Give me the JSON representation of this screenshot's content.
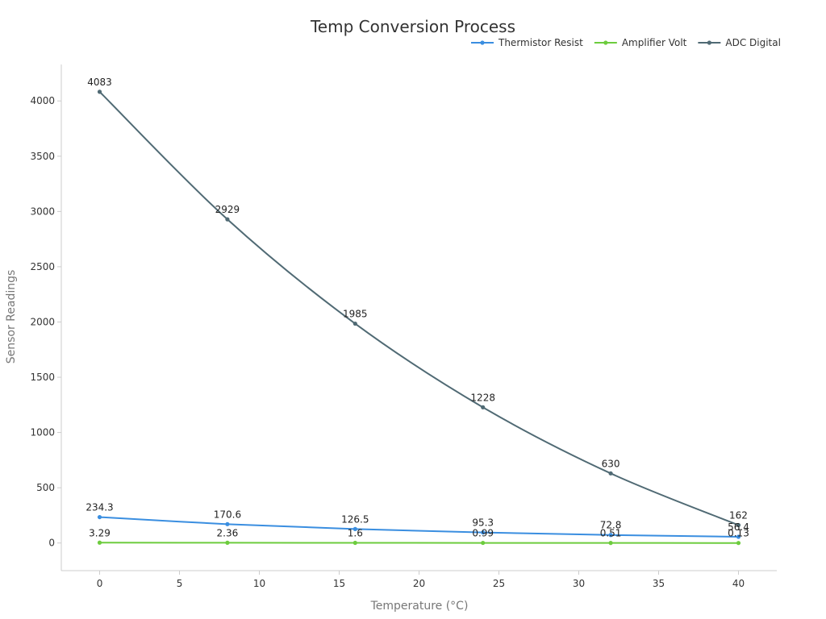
{
  "chart_data": {
    "type": "line",
    "title": "Temp Conversion Process",
    "xlabel": "Temperature (°C)",
    "ylabel": "Sensor Readings",
    "x": [
      0,
      8,
      16,
      24,
      32,
      40
    ],
    "xlim": [
      -2.4,
      42.4
    ],
    "ylim": [
      -250,
      4330
    ],
    "xticks": [
      0,
      5,
      10,
      15,
      20,
      25,
      30,
      35,
      40
    ],
    "yticks": [
      0,
      500,
      1000,
      1500,
      2000,
      2500,
      3000,
      3500,
      4000
    ],
    "grid": false,
    "legend_position": "top-right",
    "series": [
      {
        "name": "Thermistor Resist",
        "color": "#3a8ee0",
        "values": [
          234.3,
          170.6,
          126.5,
          95.3,
          72.8,
          56.4
        ],
        "labels": [
          "234.3",
          "170.6",
          "126.5",
          "95.3",
          "72.8",
          "56.4"
        ]
      },
      {
        "name": "Amplifier Volt",
        "color": "#6dcc3e",
        "values": [
          3.29,
          2.36,
          1.6,
          0.99,
          0.51,
          0.13
        ],
        "labels": [
          "3.29",
          "2.36",
          "1.6",
          "0.99",
          "0.51",
          "0.13"
        ]
      },
      {
        "name": "ADC Digital",
        "color": "#506a74",
        "values": [
          4083,
          2929,
          1985,
          1228,
          630,
          162
        ],
        "labels": [
          "4083",
          "2929",
          "1985",
          "1228",
          "630",
          "162"
        ]
      }
    ]
  }
}
